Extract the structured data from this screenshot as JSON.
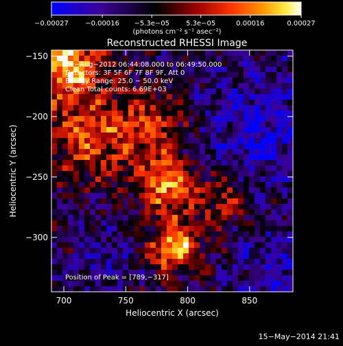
{
  "chart_data": {
    "type": "heatmap",
    "title": "Reconstructed RHESSI Image",
    "xlabel": "Heliocentric X (arcsec)",
    "ylabel": "Heliocentric Y (arcsec)",
    "xlim": [
      690,
      885
    ],
    "ylim": [
      -345,
      -145
    ],
    "x_ticks": [
      {
        "value": 700,
        "label": "700"
      },
      {
        "value": 750,
        "label": "750"
      },
      {
        "value": 800,
        "label": "800"
      },
      {
        "value": 850,
        "label": "850"
      }
    ],
    "y_ticks": [
      {
        "value": -150,
        "label": "−150"
      },
      {
        "value": -200,
        "label": "−200"
      },
      {
        "value": -250,
        "label": "−250"
      },
      {
        "value": -300,
        "label": "−300"
      }
    ],
    "colorbar": {
      "min": -0.00027,
      "max": 0.00027,
      "unit_label": "(photons cm⁻² s⁻¹ asec⁻²)",
      "ticks": [
        {
          "value": -0.00027,
          "label": "−0.00027"
        },
        {
          "value": -0.00016,
          "label": "−0.00016"
        },
        {
          "value": -5.3e-05,
          "label": "−5.3e−05"
        },
        {
          "value": 5.3e-05,
          "label": "5.3e−05"
        },
        {
          "value": 0.00016,
          "label": "0.00016"
        },
        {
          "value": 0.00027,
          "label": "0.00027"
        }
      ]
    },
    "annotations": [
      "29−Aug−2012 06:44:08.000 to 06:49:50.000",
      "Detectors: 3F 5F 6F 7F 8F 9F, Att 0",
      "Energy Range: 25.0 − 50.0 keV",
      "Clean    Total counts: 6.69E+03"
    ],
    "peak_label": "Position of Peak = [789,−317]",
    "peak": [
      789,
      -317
    ],
    "colors": [
      "#0000ff",
      "#3c0096",
      "#000000",
      "#9b0000",
      "#ff3300",
      "#ff9900",
      "#ffee44",
      "#ffffff"
    ]
  },
  "footer": {
    "timestamp": "15−May−2014 21:41"
  }
}
